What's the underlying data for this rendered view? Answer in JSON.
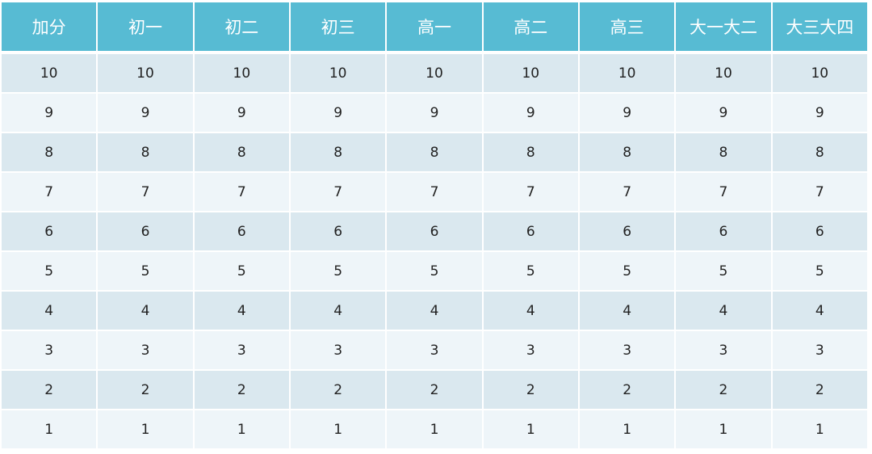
{
  "headers": [
    "加分",
    "初一",
    "初二",
    "初三",
    "高一",
    "高二",
    "高三",
    "大一大二",
    "大三大四"
  ],
  "rows": [
    [
      "10",
      "10",
      "10",
      "10",
      "10",
      "10",
      "10",
      "10",
      "10"
    ],
    [
      "9",
      "9",
      "9",
      "9",
      "9",
      "9",
      "9",
      "9",
      "9"
    ],
    [
      "8",
      "8",
      "8",
      "8",
      "8",
      "8",
      "8",
      "8",
      "8"
    ],
    [
      "7",
      "7",
      "7",
      "7",
      "7",
      "7",
      "7",
      "7",
      "7"
    ],
    [
      "6",
      "6",
      "6",
      "6",
      "6",
      "6",
      "6",
      "6",
      "6"
    ],
    [
      "5",
      "5",
      "5",
      "5",
      "5",
      "5",
      "5",
      "5",
      "5"
    ],
    [
      "4",
      "4",
      "4",
      "4",
      "4",
      "4",
      "4",
      "4",
      "4"
    ],
    [
      "3",
      "3",
      "3",
      "3",
      "3",
      "3",
      "3",
      "3",
      "3"
    ],
    [
      "2",
      "2",
      "2",
      "2",
      "2",
      "2",
      "2",
      "2",
      "2"
    ],
    [
      "1",
      "1",
      "1",
      "1",
      "1",
      "1",
      "1",
      "1",
      "1"
    ]
  ],
  "colors": {
    "header": "#57bbd3",
    "row_odd": "#dae8ef",
    "row_even": "#eef5f9"
  }
}
